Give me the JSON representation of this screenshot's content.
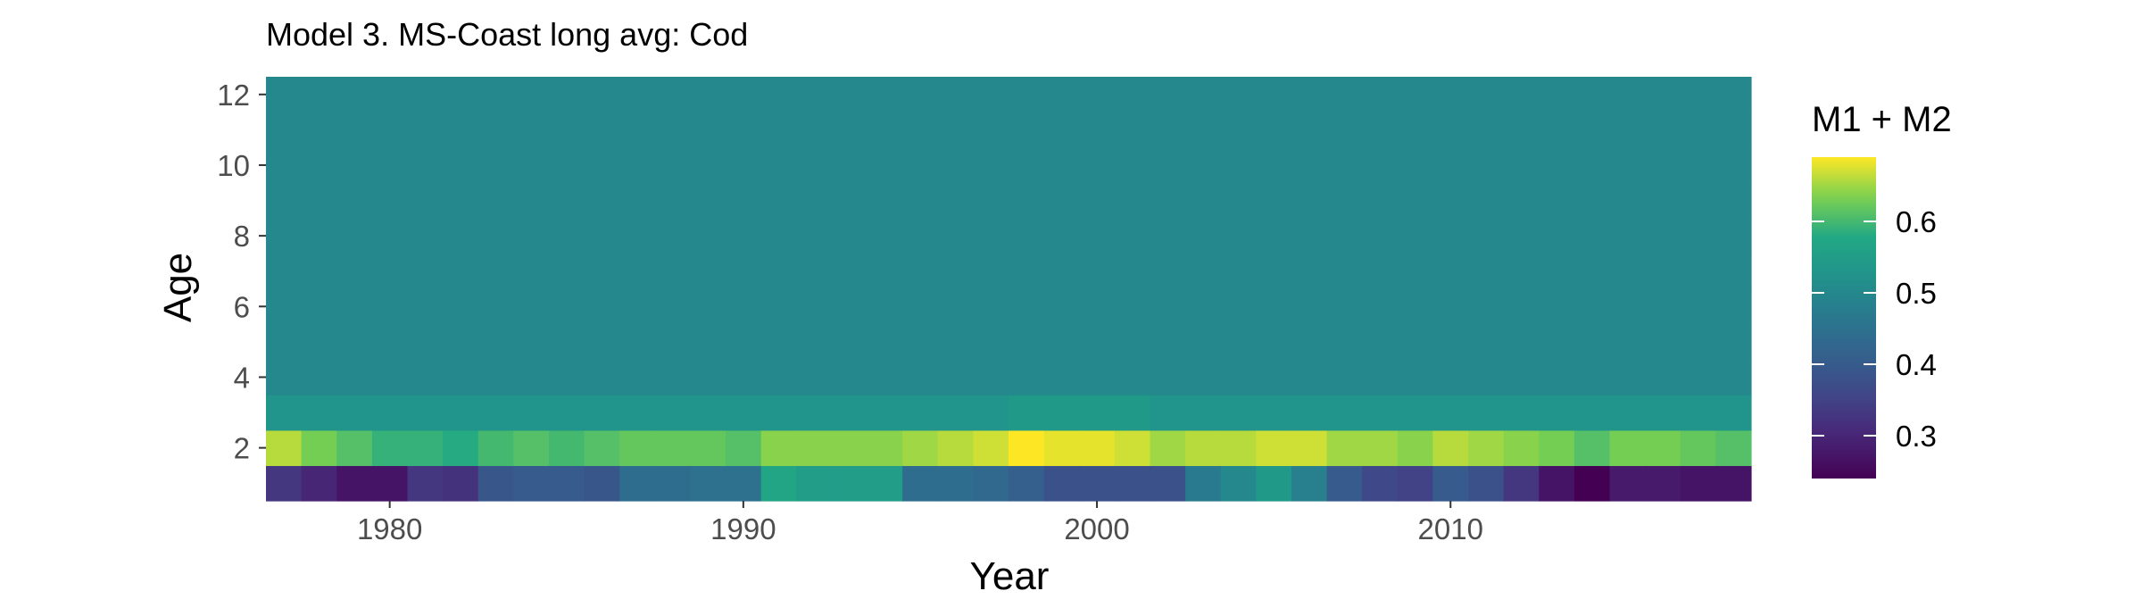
{
  "chart_data": {
    "type": "heatmap",
    "title": "Model 3. MS-Coast long avg: Cod",
    "xlabel": "Year",
    "ylabel": "Age",
    "x_ticks": [
      1980,
      1990,
      2000,
      2010
    ],
    "y_ticks": [
      2,
      4,
      6,
      8,
      10,
      12
    ],
    "xlim": [
      1976.5,
      2018.5
    ],
    "ylim": [
      0.5,
      12.5
    ],
    "grid": false,
    "legend": {
      "title": "M1 + M2",
      "placement": "right",
      "range": [
        0.24,
        0.69
      ],
      "ticks": [
        0.3,
        0.4,
        0.5,
        0.6
      ]
    },
    "years": [
      1977,
      1978,
      1979,
      1980,
      1981,
      1982,
      1983,
      1984,
      1985,
      1986,
      1987,
      1988,
      1989,
      1990,
      1991,
      1992,
      1993,
      1994,
      1995,
      1996,
      1997,
      1998,
      1999,
      2000,
      2001,
      2002,
      2003,
      2004,
      2005,
      2006,
      2007,
      2008,
      2009,
      2010,
      2011,
      2012,
      2013,
      2014,
      2015,
      2016,
      2017,
      2018
    ],
    "ages": [
      1,
      2,
      3,
      4,
      5,
      6,
      7,
      8,
      9,
      10,
      11,
      12
    ],
    "values": {
      "age1": [
        0.33,
        0.3,
        0.27,
        0.27,
        0.33,
        0.32,
        0.39,
        0.4,
        0.4,
        0.39,
        0.44,
        0.44,
        0.45,
        0.45,
        0.57,
        0.55,
        0.55,
        0.55,
        0.44,
        0.44,
        0.43,
        0.41,
        0.38,
        0.38,
        0.38,
        0.38,
        0.47,
        0.5,
        0.54,
        0.48,
        0.4,
        0.36,
        0.35,
        0.4,
        0.38,
        0.33,
        0.27,
        0.24,
        0.28,
        0.28,
        0.27,
        0.27
      ],
      "age2": [
        0.66,
        0.63,
        0.61,
        0.59,
        0.59,
        0.58,
        0.6,
        0.61,
        0.6,
        0.61,
        0.62,
        0.62,
        0.62,
        0.61,
        0.64,
        0.64,
        0.64,
        0.64,
        0.65,
        0.66,
        0.67,
        0.69,
        0.68,
        0.68,
        0.67,
        0.65,
        0.66,
        0.66,
        0.67,
        0.67,
        0.65,
        0.65,
        0.64,
        0.66,
        0.65,
        0.64,
        0.63,
        0.61,
        0.63,
        0.63,
        0.62,
        0.61
      ],
      "age3": [
        0.53,
        0.53,
        0.53,
        0.53,
        0.53,
        0.53,
        0.53,
        0.53,
        0.53,
        0.53,
        0.53,
        0.53,
        0.53,
        0.53,
        0.53,
        0.53,
        0.53,
        0.53,
        0.53,
        0.53,
        0.53,
        0.54,
        0.54,
        0.54,
        0.54,
        0.53,
        0.53,
        0.53,
        0.53,
        0.53,
        0.53,
        0.53,
        0.53,
        0.53,
        0.53,
        0.53,
        0.53,
        0.53,
        0.53,
        0.53,
        0.53,
        0.53
      ],
      "age4_to_12": 0.5
    }
  }
}
